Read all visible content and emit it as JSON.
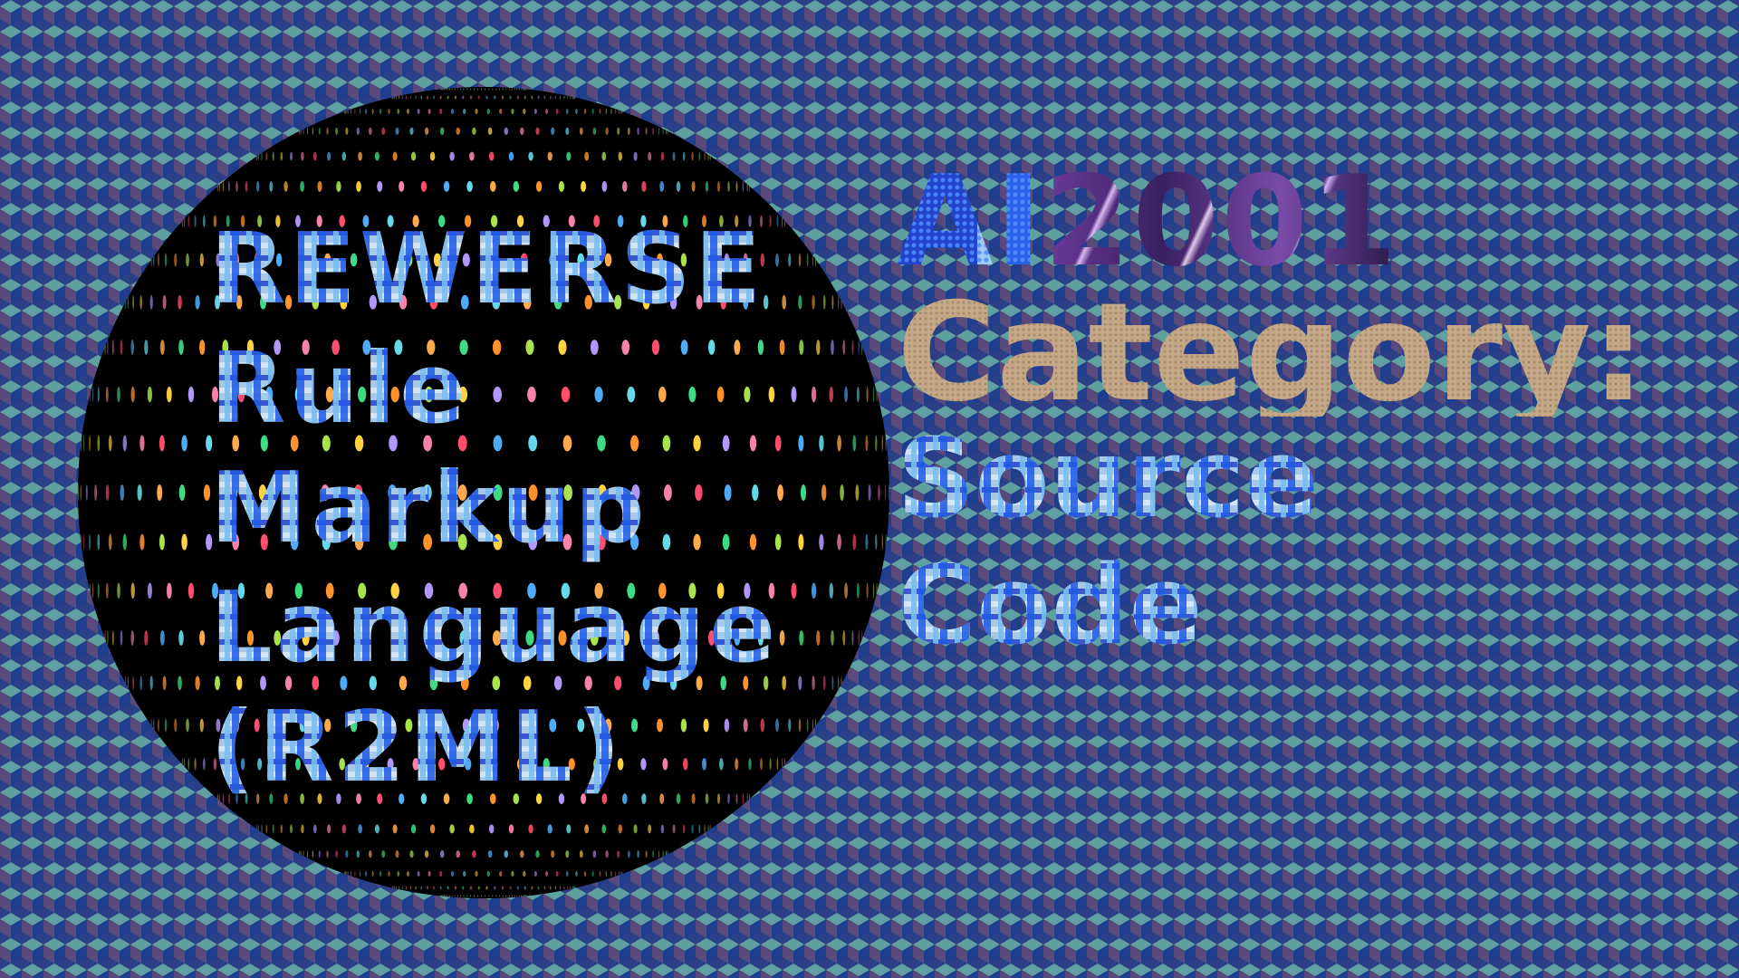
{
  "title": {
    "lines": [
      "REWERSE",
      "Rule",
      "Markup",
      "Language",
      "(R2ML)"
    ]
  },
  "award": {
    "ai": "AI",
    "year": "2001",
    "category_label": "Category:",
    "category_value_lines": [
      "Source",
      "Code"
    ]
  },
  "colors": {
    "background_dark": "#2b3f86",
    "background_teal": "#5a9a9a",
    "background_purple": "#5a4a7a",
    "sphere": "#000000",
    "category_tan": "#c4a888",
    "ai_blue": "#2a52e0",
    "year_purple": "#5a3a8a"
  }
}
